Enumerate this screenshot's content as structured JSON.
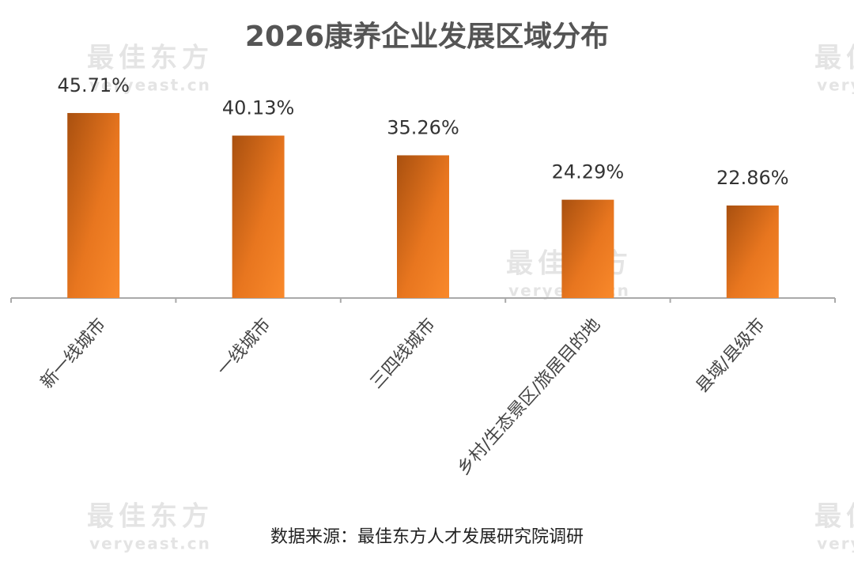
{
  "chart_data": {
    "type": "bar",
    "title": "2026康养企业发展区域分布",
    "categories": [
      "新一线城市",
      "一线城市",
      "三四线城市",
      "乡村/生态景区/旅居目的地",
      "县域/县级市"
    ],
    "values": [
      45.71,
      40.13,
      35.26,
      24.29,
      22.86
    ],
    "value_labels": [
      "45.71%",
      "40.13%",
      "35.26%",
      "24.29%",
      "22.86%"
    ],
    "color": "#f07d22",
    "source": "数据来源：最佳东方人才发展研究院调研",
    "watermark": {
      "name": "最佳东方",
      "site": "veryeast.cn"
    }
  }
}
